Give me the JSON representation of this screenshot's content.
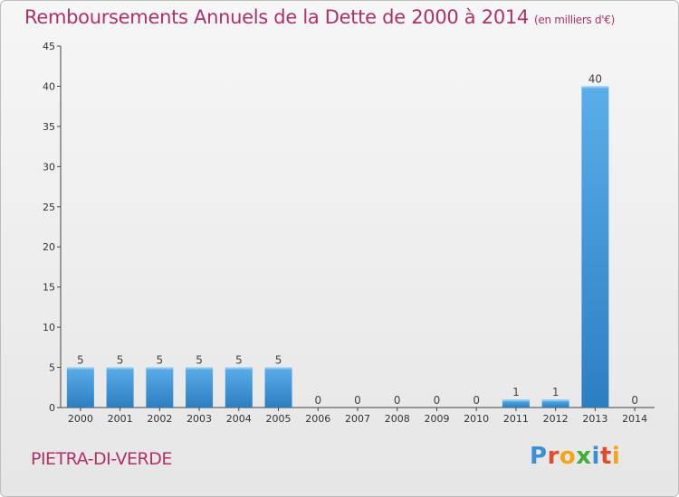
{
  "header": {
    "title": "Remboursements Annuels de la Dette de 2000 à 2014",
    "subtitle": "(en milliers d'€)"
  },
  "footer": {
    "place": "PIETRA-DI-VERDE",
    "logo": "Proxiti",
    "logo_colors": [
      "#3a8fd6",
      "#e14b2a",
      "#f2a516",
      "#3fae3a",
      "#3a8fd6",
      "#e14b2a",
      "#f2a516"
    ]
  },
  "colors": {
    "title": "#b0306a",
    "bar_top": "#5aaee8",
    "bar_bottom": "#2c7ec2",
    "axis": "#444444",
    "grid": "#d0d0d0"
  },
  "chart_data": {
    "type": "bar",
    "title": "Remboursements Annuels de la Dette de 2000 à 2014",
    "subtitle": "(en milliers d'€)",
    "categories": [
      "2000",
      "2001",
      "2002",
      "2003",
      "2004",
      "2005",
      "2006",
      "2007",
      "2008",
      "2009",
      "2010",
      "2011",
      "2012",
      "2013",
      "2014"
    ],
    "values": [
      5,
      5,
      5,
      5,
      5,
      5,
      0,
      0,
      0,
      0,
      0,
      1,
      1,
      40,
      0
    ],
    "ylim": [
      0,
      45
    ],
    "yticks": [
      0,
      5,
      10,
      15,
      20,
      25,
      30,
      35,
      40,
      45
    ],
    "grid": false,
    "legend": "none",
    "data_labels": true
  }
}
